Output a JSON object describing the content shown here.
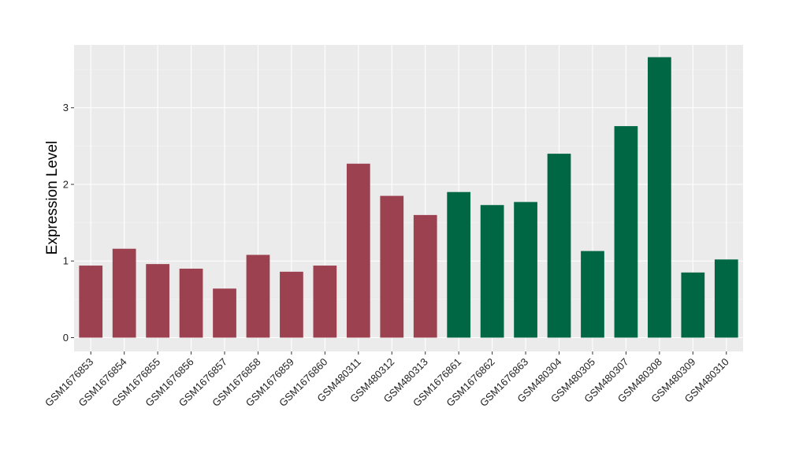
{
  "chart_data": {
    "type": "bar",
    "ylabel": "Expression Level",
    "xlabel": "",
    "ylim": [
      -0.18,
      3.82
    ],
    "yticks": [
      0,
      1,
      2,
      3
    ],
    "ytick_labels": [
      "0",
      "1",
      "2",
      "3"
    ],
    "grid": true,
    "background": "#EBEBEB",
    "categories": [
      "GSM1676853",
      "GSM1676854",
      "GSM1676855",
      "GSM1676856",
      "GSM1676857",
      "GSM1676858",
      "GSM1676859",
      "GSM1676860",
      "GSM480311",
      "GSM480312",
      "GSM480313",
      "GSM1676861",
      "GSM1676862",
      "GSM1676863",
      "GSM480304",
      "GSM480305",
      "GSM480307",
      "GSM480308",
      "GSM480309",
      "GSM480310"
    ],
    "values": [
      0.94,
      1.16,
      0.96,
      0.9,
      0.64,
      1.08,
      0.86,
      0.94,
      2.27,
      1.85,
      1.6,
      1.9,
      1.73,
      1.77,
      2.4,
      1.13,
      2.76,
      3.66,
      0.85,
      1.02
    ],
    "bar_colors": [
      "#9B4150",
      "#9B4150",
      "#9B4150",
      "#9B4150",
      "#9B4150",
      "#9B4150",
      "#9B4150",
      "#9B4150",
      "#9B4150",
      "#9B4150",
      "#9B4150",
      "#006744",
      "#006744",
      "#006744",
      "#006744",
      "#006744",
      "#006744",
      "#006744",
      "#006744",
      "#006744"
    ]
  }
}
